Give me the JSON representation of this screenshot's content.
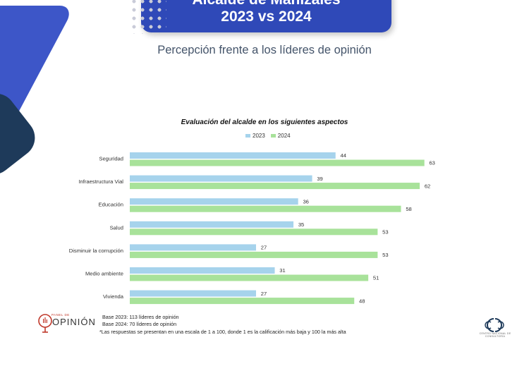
{
  "header": {
    "title_line1": "Alcalde de Manizales",
    "title_line2": "2023 vs 2024",
    "subtitle": "Percepción frente a los líderes de opinión"
  },
  "colors": {
    "banner": "#2f49b8",
    "series_2023": "#a6d3ec",
    "series_2024": "#a8e29a",
    "deco_blue": "#3d56c8",
    "deco_navy": "#1e3a5a"
  },
  "chart_data": {
    "type": "bar",
    "orientation": "horizontal",
    "title": "Evaluación del alcalde en los siguientes aspectos",
    "categories": [
      "Seguridad",
      "Infraestructura Vial",
      "Educación",
      "Salud",
      "Disminuir la corrupción",
      "Medio ambiente",
      "Vivienda"
    ],
    "series": [
      {
        "name": "2023",
        "values": [
          44,
          39,
          36,
          35,
          27,
          31,
          27
        ]
      },
      {
        "name": "2024",
        "values": [
          63,
          62,
          58,
          53,
          53,
          51,
          48
        ]
      }
    ],
    "xlim": [
      0,
      100
    ],
    "grid": false,
    "legend_position": "top"
  },
  "footer": {
    "logo_small_text": "PANEL DE",
    "logo_main_text": "OPINIÓN",
    "base_2023": "Base 2023: 113 líderes de opinión",
    "base_2024": "Base 2024: 70 líderes de opinión",
    "footnote": "*Las respuestas se presentan en una escala de 1 a 100, donde 1 es la calificación más baja y 100 la más alta",
    "right_logo_text": "CENTRO NACIONAL DE CONSULTORÍA",
    "right_logo_icon": "cnc-logo"
  }
}
